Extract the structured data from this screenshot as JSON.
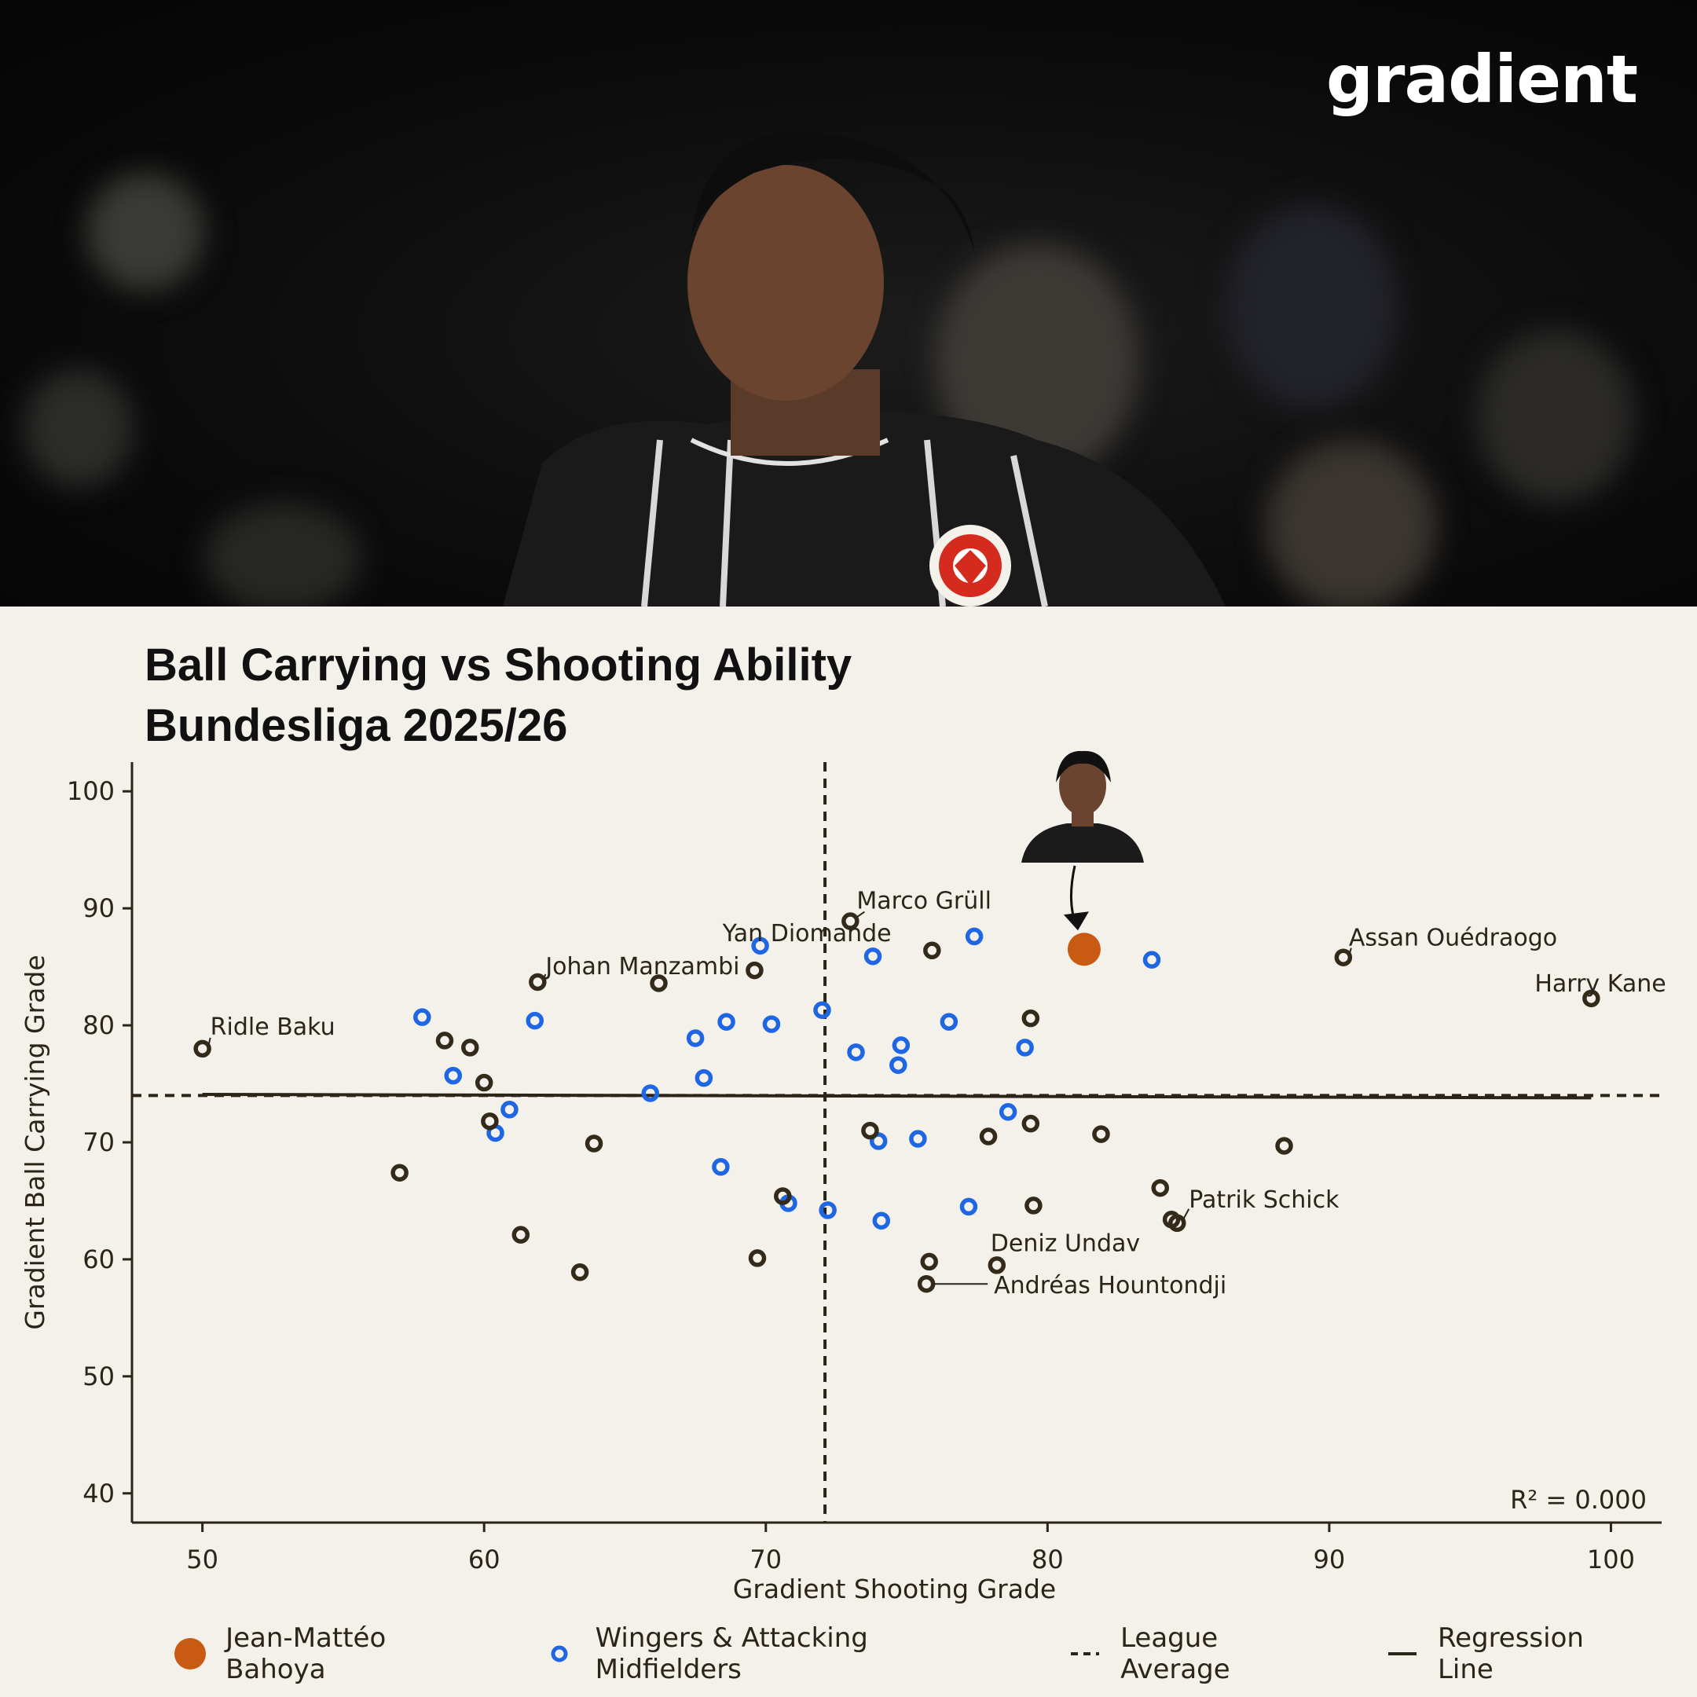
{
  "brand": {
    "logo_text": "gradient"
  },
  "colors": {
    "background": "#f3f1ea",
    "highlight": "#c85a12",
    "wingers": "#1f66e5",
    "others": "#332a1a",
    "lines": "#2b2418"
  },
  "chart_data": {
    "type": "scatter",
    "title": "Ball Carrying vs Shooting Ability",
    "subtitle": "Bundesliga 2025/26",
    "xlabel": "Gradient Shooting Grade",
    "ylabel": "Gradient Ball Carrying Grade",
    "xlim": [
      47.5,
      101.8
    ],
    "ylim": [
      37.5,
      102.5
    ],
    "xticks": [
      50,
      60,
      70,
      80,
      90,
      100
    ],
    "yticks": [
      40,
      50,
      60,
      70,
      80,
      90,
      100
    ],
    "grid": false,
    "legend_placement": "bottom",
    "league_average": {
      "x": 72.1,
      "y": 74.0
    },
    "regression": {
      "x": [
        50,
        99.3
      ],
      "y": [
        74.1,
        73.8
      ]
    },
    "r_squared_label": "R² = 0.000",
    "legend": {
      "highlight": "Jean-Mattéo Bahoya",
      "wingers": "Wingers & Attacking Midfielders",
      "league_average": "League Average",
      "regression": "Regression Line"
    },
    "highlight_player": {
      "name": "Jean-Mattéo Bahoya",
      "x": 81.3,
      "y": 86.5
    },
    "series": [
      {
        "group": "wingers",
        "points": [
          [
            57.8,
            80.7
          ],
          [
            58.9,
            75.7
          ],
          [
            60.4,
            70.8
          ],
          [
            60.9,
            72.8
          ],
          [
            61.8,
            80.4
          ],
          [
            65.9,
            74.2
          ],
          [
            67.5,
            78.9
          ],
          [
            67.8,
            75.5
          ],
          [
            68.4,
            67.9
          ],
          [
            68.6,
            80.3
          ],
          [
            69.8,
            86.8
          ],
          [
            70.2,
            80.1
          ],
          [
            70.8,
            64.8
          ],
          [
            72.0,
            81.3
          ],
          [
            72.2,
            64.2
          ],
          [
            73.2,
            77.7
          ],
          [
            73.8,
            85.9
          ],
          [
            74.0,
            70.1
          ],
          [
            74.1,
            63.3
          ],
          [
            74.7,
            76.6
          ],
          [
            74.8,
            78.3
          ],
          [
            75.4,
            70.3
          ],
          [
            76.5,
            80.3
          ],
          [
            77.2,
            64.5
          ],
          [
            77.4,
            87.6
          ],
          [
            78.6,
            72.6
          ],
          [
            79.2,
            78.1
          ],
          [
            83.7,
            85.6
          ]
        ]
      },
      {
        "group": "others",
        "points": [
          [
            50.0,
            78.0
          ],
          [
            57.0,
            67.4
          ],
          [
            58.6,
            78.7
          ],
          [
            59.5,
            78.1
          ],
          [
            60.0,
            75.1
          ],
          [
            60.2,
            71.8
          ],
          [
            61.3,
            62.1
          ],
          [
            61.9,
            83.7
          ],
          [
            63.4,
            58.9
          ],
          [
            63.9,
            69.9
          ],
          [
            66.2,
            83.6
          ],
          [
            69.6,
            84.7
          ],
          [
            69.7,
            60.1
          ],
          [
            70.6,
            65.4
          ],
          [
            73.0,
            88.9
          ],
          [
            73.7,
            71.0
          ],
          [
            75.7,
            57.9
          ],
          [
            75.8,
            59.8
          ],
          [
            75.9,
            86.4
          ],
          [
            77.9,
            70.5
          ],
          [
            78.2,
            59.5
          ],
          [
            79.4,
            80.6
          ],
          [
            79.4,
            71.6
          ],
          [
            79.5,
            64.6
          ],
          [
            81.9,
            70.7
          ],
          [
            84.0,
            66.1
          ],
          [
            84.4,
            63.4
          ],
          [
            84.6,
            63.1
          ],
          [
            88.4,
            69.7
          ],
          [
            90.5,
            85.8
          ],
          [
            99.3,
            82.3
          ]
        ]
      }
    ],
    "labels": [
      {
        "name": "Ridle Baku",
        "x": 50.0,
        "y": 78.0
      },
      {
        "name": "Johan Manzambi",
        "x": 61.9,
        "y": 83.7
      },
      {
        "name": "Yan Diomande",
        "x": 69.8,
        "y": 86.8
      },
      {
        "name": "Marco Grüll",
        "x": 73.0,
        "y": 88.9
      },
      {
        "name": "Assan Ouédraogo",
        "x": 90.5,
        "y": 85.8
      },
      {
        "name": "Harry Kane",
        "x": 99.3,
        "y": 82.3
      },
      {
        "name": "Patrik Schick",
        "x": 84.6,
        "y": 63.1
      },
      {
        "name": "Deniz Undav",
        "x": 78.2,
        "y": 59.5
      },
      {
        "name": "Andréas Hountondji",
        "x": 75.7,
        "y": 57.9
      }
    ]
  }
}
